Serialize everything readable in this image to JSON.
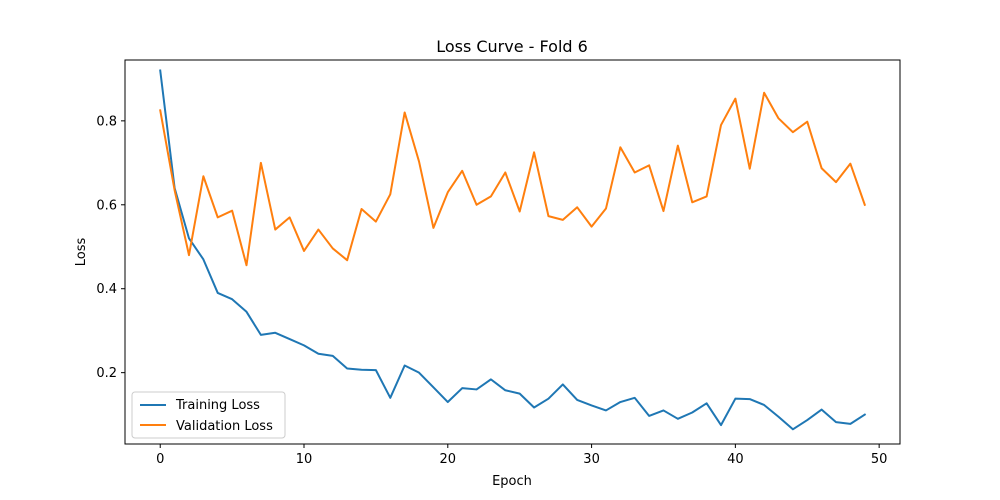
{
  "chart_data": {
    "type": "line",
    "title": "Loss Curve - Fold 6",
    "xlabel": "Epoch",
    "ylabel": "Loss",
    "xlim": [
      -2.45,
      51.45
    ],
    "ylim": [
      0.03,
      0.945
    ],
    "xticks": [
      0,
      10,
      20,
      30,
      40,
      50
    ],
    "yticks": [
      0.2,
      0.4,
      0.6,
      0.8
    ],
    "ytick_labels": [
      "0.2",
      "0.4",
      "0.6",
      "0.8"
    ],
    "grid": false,
    "legend_position": "lower-left",
    "x": [
      0,
      1,
      2,
      3,
      4,
      5,
      6,
      7,
      8,
      9,
      10,
      11,
      12,
      13,
      14,
      15,
      16,
      17,
      18,
      19,
      20,
      21,
      22,
      23,
      24,
      25,
      26,
      27,
      28,
      29,
      30,
      31,
      32,
      33,
      34,
      35,
      36,
      37,
      38,
      39,
      40,
      41,
      42,
      43,
      44,
      45,
      46,
      47,
      48,
      49
    ],
    "series": [
      {
        "name": "Training Loss",
        "color": "#1f77b4",
        "values": [
          0.92,
          0.64,
          0.52,
          0.47,
          0.39,
          0.375,
          0.345,
          0.29,
          0.295,
          0.28,
          0.265,
          0.245,
          0.24,
          0.21,
          0.207,
          0.206,
          0.14,
          0.217,
          0.2,
          0.165,
          0.13,
          0.163,
          0.16,
          0.184,
          0.158,
          0.15,
          0.117,
          0.138,
          0.172,
          0.135,
          0.122,
          0.11,
          0.13,
          0.14,
          0.097,
          0.11,
          0.09,
          0.105,
          0.127,
          0.075,
          0.138,
          0.137,
          0.123,
          0.095,
          0.065,
          0.087,
          0.112,
          0.082,
          0.078,
          0.1
        ]
      },
      {
        "name": "Validation Loss",
        "color": "#ff7f0e",
        "values": [
          0.825,
          0.635,
          0.48,
          0.668,
          0.57,
          0.586,
          0.456,
          0.7,
          0.541,
          0.57,
          0.49,
          0.541,
          0.496,
          0.468,
          0.59,
          0.56,
          0.625,
          0.82,
          0.703,
          0.545,
          0.63,
          0.681,
          0.6,
          0.62,
          0.677,
          0.584,
          0.725,
          0.573,
          0.564,
          0.594,
          0.548,
          0.591,
          0.737,
          0.677,
          0.694,
          0.585,
          0.741,
          0.606,
          0.62,
          0.79,
          0.853,
          0.686,
          0.867,
          0.806,
          0.773,
          0.798,
          0.687,
          0.654,
          0.698,
          0.6
        ]
      }
    ]
  }
}
